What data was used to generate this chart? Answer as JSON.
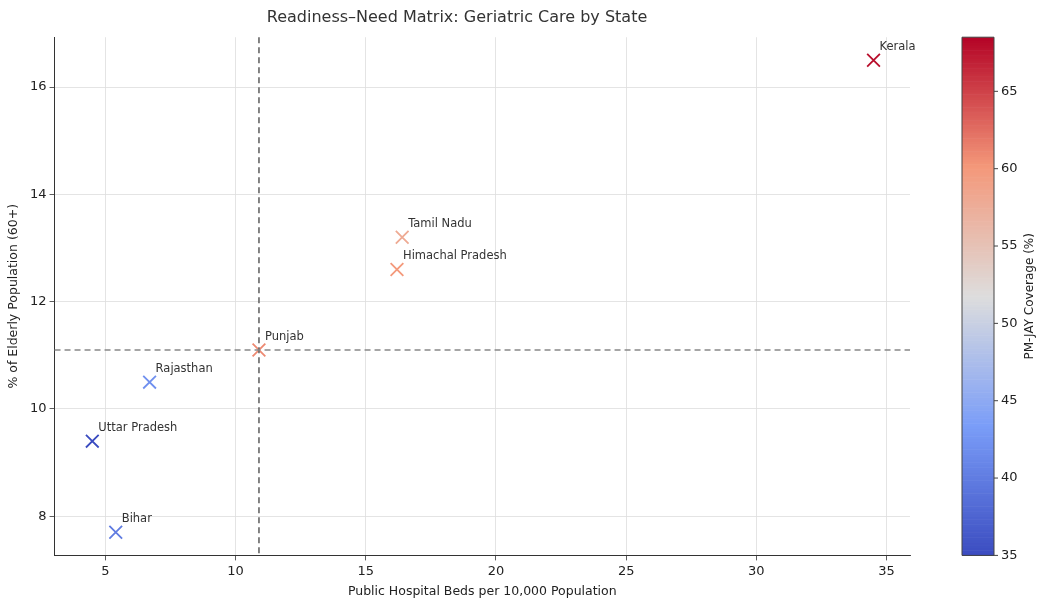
{
  "chart_data": {
    "type": "scatter",
    "title": "Readiness–Need Matrix: Geriatric Care by State",
    "xlabel": "Public Hospital Beds per 10,000 Population",
    "ylabel": "% of Elderly Population (60+)",
    "clabel": "PM-JAY Coverage (%)",
    "series": [
      {
        "name": "Kerala",
        "x": [
          34.5
        ],
        "values": [
          16.5
        ],
        "cvalues": [
          68
        ]
      },
      {
        "name": "Tamil Nadu",
        "x": [
          16.4
        ],
        "values": [
          13.2
        ],
        "cvalues": [
          58
        ]
      },
      {
        "name": "Himachal Pradesh",
        "x": [
          16.2
        ],
        "values": [
          12.6
        ],
        "cvalues": [
          60
        ]
      },
      {
        "name": "Punjab",
        "x": [
          10.9
        ],
        "values": [
          11.1
        ],
        "cvalues": [
          61
        ]
      },
      {
        "name": "Rajasthan",
        "x": [
          6.7
        ],
        "values": [
          10.5
        ],
        "cvalues": [
          42
        ]
      },
      {
        "name": "Uttar Pradesh",
        "x": [
          4.5
        ],
        "values": [
          9.4
        ],
        "cvalues": [
          35
        ]
      },
      {
        "name": "Bihar",
        "x": [
          5.4
        ],
        "values": [
          7.7
        ],
        "cvalues": [
          40
        ]
      }
    ],
    "xlim": [
      3.05,
      35.9
    ],
    "xticks": [
      5,
      10,
      15,
      20,
      25,
      30,
      35
    ],
    "ylim": [
      7.27,
      16.93
    ],
    "yticks": [
      8,
      10,
      12,
      14,
      16
    ],
    "clim": [
      35,
      68.5
    ],
    "cticks": [
      35,
      40,
      45,
      50,
      55,
      60,
      65
    ],
    "ref_lines": [
      {
        "axis": "x",
        "value": 10.9,
        "color": "#666666",
        "line_style": "dashed"
      },
      {
        "axis": "y",
        "value": 11.1,
        "color": "#888888",
        "line_style": "dashed"
      }
    ],
    "grid": true,
    "legend": false,
    "marker": "cross"
  }
}
